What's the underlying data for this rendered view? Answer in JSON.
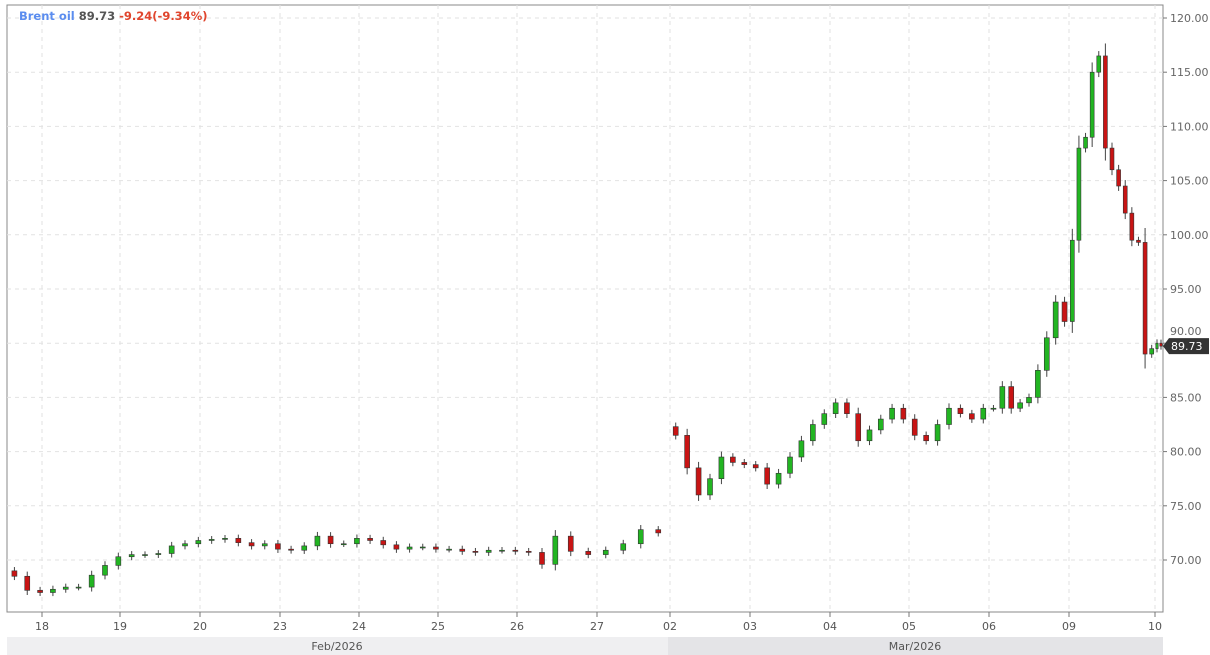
{
  "header": {
    "name": "Brent oil",
    "price": "89.73",
    "change": "-9.24(-9.34%)"
  },
  "chart_data": {
    "type": "candlestick",
    "ylim": [
      65,
      120.5
    ],
    "yticks": [
      70,
      75,
      80,
      85,
      90,
      95,
      100,
      105,
      110,
      115,
      120
    ],
    "ytick_labels": [
      "70.00",
      "75.00",
      "80.00",
      "85.00",
      "90.00",
      "95.00",
      "100.00",
      "105.00",
      "110.00",
      "115.00",
      "120.00"
    ],
    "last_price": 89.73,
    "last_price_label": "89.73",
    "grid": true,
    "months": [
      {
        "label": "Feb/2026"
      },
      {
        "label": "Mar/2026"
      }
    ],
    "colors": {
      "up": "#22b522",
      "down": "#c81414",
      "title": "#5b8def",
      "change": "#e0452d"
    },
    "days": [
      {
        "label": "18",
        "month": 0,
        "closes": [
          68.5,
          67.2,
          67.0,
          67.3,
          67.5,
          67.5
        ]
      },
      {
        "label": "19",
        "month": 0,
        "closes": [
          68.6,
          69.5,
          70.3,
          70.5,
          70.5,
          70.6
        ]
      },
      {
        "label": "20",
        "month": 0,
        "closes": [
          71.3,
          71.5,
          71.8,
          71.9,
          72.0,
          71.6
        ]
      },
      {
        "label": "23",
        "month": 0,
        "closes": [
          71.3,
          71.5,
          71.0,
          70.9,
          71.3,
          72.2
        ]
      },
      {
        "label": "24",
        "month": 0,
        "closes": [
          71.5,
          71.5,
          72.0,
          71.8,
          71.4,
          71.0
        ]
      },
      {
        "label": "25",
        "month": 0,
        "closes": [
          71.2,
          71.2,
          71.0,
          71.0,
          70.8,
          70.7
        ]
      },
      {
        "label": "26",
        "month": 0,
        "closes": [
          70.9,
          70.9,
          70.8,
          70.7,
          69.6,
          72.2
        ]
      },
      {
        "label": "27",
        "month": 0,
        "closes": [
          70.8,
          70.5,
          70.9,
          71.5,
          72.8,
          72.5
        ]
      },
      {
        "label": "02",
        "month": 1,
        "closes": [
          81.5,
          78.5,
          76.0,
          77.5,
          79.5,
          79.0,
          78.8
        ]
      },
      {
        "label": "03",
        "month": 1,
        "closes": [
          78.5,
          77.0,
          78.0,
          79.5,
          81.0,
          82.5,
          83.5
        ]
      },
      {
        "label": "04",
        "month": 1,
        "closes": [
          84.5,
          83.5,
          81.0,
          82.0,
          83.0,
          84.0,
          83.0
        ]
      },
      {
        "label": "05",
        "month": 1,
        "closes": [
          81.5,
          81.0,
          82.5,
          84.0,
          83.5,
          83.0,
          84.0
        ]
      },
      {
        "label": "06",
        "month": 1,
        "closes": [
          84.0,
          86.0,
          84.0,
          84.5,
          85.0,
          87.5,
          90.5,
          93.8,
          92.0
        ]
      },
      {
        "label": "09",
        "month": 1,
        "closes": [
          99.5,
          108.0,
          109.0,
          115.0,
          116.5,
          108.0,
          106.0,
          104.5,
          102.0,
          99.5,
          99.3,
          89.0,
          89.5
        ]
      },
      {
        "label": "10",
        "month": 1,
        "closes": [
          90.0,
          89.73
        ]
      }
    ]
  }
}
